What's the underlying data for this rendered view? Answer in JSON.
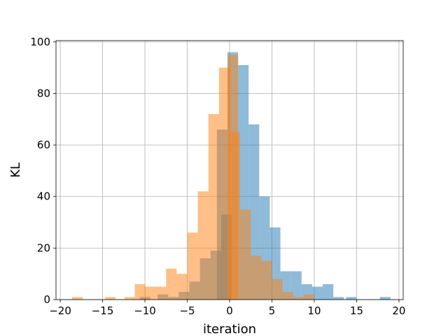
{
  "chart_data": {
    "type": "histogram",
    "xlabel": "iteration",
    "ylabel": "KL",
    "xlim": [
      -20.5,
      20.5
    ],
    "ylim": [
      0,
      100.5
    ],
    "xticks": [
      -20,
      -15,
      -10,
      -5,
      0,
      5,
      10,
      15,
      20
    ],
    "yticks": [
      0,
      20,
      40,
      60,
      80,
      100
    ],
    "grid": true,
    "bin_width": 1.25,
    "series": [
      {
        "color": "#1f77b4",
        "alpha": 0.5,
        "bins": [
          {
            "x0": -10.6,
            "value": 1
          },
          {
            "x0": -8.5,
            "value": 2
          },
          {
            "x0": -7.25,
            "value": 1
          },
          {
            "x0": -6.0,
            "value": 3
          },
          {
            "x0": -4.75,
            "value": 7
          },
          {
            "x0": -3.5,
            "value": 16
          },
          {
            "x0": -2.25,
            "value": 19
          },
          {
            "x0": -1.0,
            "value": 33
          },
          {
            "x0": -1.5,
            "value": 66
          },
          {
            "x0": -0.25,
            "value": 96
          },
          {
            "x0": 1.0,
            "value": 91
          },
          {
            "x0": 2.25,
            "value": 68
          },
          {
            "x0": 3.5,
            "value": 40
          },
          {
            "x0": 4.75,
            "value": 28
          },
          {
            "x0": 6.0,
            "value": 11
          },
          {
            "x0": 7.25,
            "value": 11
          },
          {
            "x0": 8.5,
            "value": 6
          },
          {
            "x0": 9.75,
            "value": 5
          },
          {
            "x0": 11.0,
            "value": 6
          },
          {
            "x0": 12.25,
            "value": 1
          },
          {
            "x0": 13.75,
            "value": 1
          },
          {
            "x0": 17.75,
            "value": 1
          }
        ]
      },
      {
        "color": "#ff7f0e",
        "alpha": 0.5,
        "bins": [
          {
            "x0": -18.6,
            "value": 1
          },
          {
            "x0": -14.7,
            "value": 1
          },
          {
            "x0": -12.4,
            "value": 1
          },
          {
            "x0": -11.2,
            "value": 6
          },
          {
            "x0": -10.0,
            "value": 5
          },
          {
            "x0": -8.75,
            "value": 5
          },
          {
            "x0": -7.5,
            "value": 12
          },
          {
            "x0": -6.25,
            "value": 10
          },
          {
            "x0": -5.0,
            "value": 26
          },
          {
            "x0": -3.75,
            "value": 42
          },
          {
            "x0": -2.5,
            "value": 72
          },
          {
            "x0": -1.25,
            "value": 90
          },
          {
            "x0": -0.25,
            "value": 95
          },
          {
            "x0": 0.0,
            "value": 65
          },
          {
            "x0": 1.25,
            "value": 35
          },
          {
            "x0": 2.5,
            "value": 17
          },
          {
            "x0": 3.75,
            "value": 15
          },
          {
            "x0": 5.0,
            "value": 8
          },
          {
            "x0": 6.25,
            "value": 3
          },
          {
            "x0": 7.5,
            "value": 1
          },
          {
            "x0": 8.75,
            "value": 2
          }
        ]
      }
    ]
  }
}
